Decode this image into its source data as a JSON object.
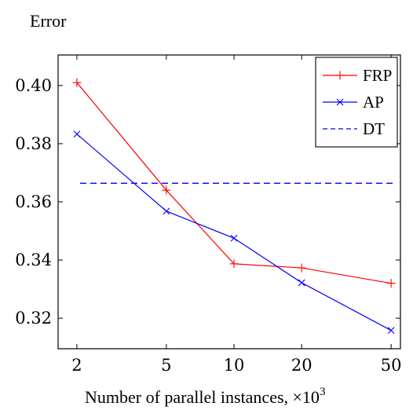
{
  "chart_data": {
    "type": "line",
    "ylabel": "Error",
    "xlabel": "Number of parallel instances, ×10",
    "xlabel_exponent": "3",
    "x_scale": "log",
    "categories": [
      "2",
      "5",
      "10",
      "20",
      "50"
    ],
    "x": [
      2,
      5,
      10,
      20,
      50
    ],
    "y_ticks": [
      "0.40",
      "0.38",
      "0.36",
      "0.34",
      "0.32"
    ],
    "y_tick_values": [
      0.4,
      0.38,
      0.36,
      0.34,
      0.32
    ],
    "ylim": [
      0.3095,
      0.4105
    ],
    "xlim": [
      1.65,
      55
    ],
    "grid": false,
    "legend_position": "top-right",
    "series": [
      {
        "name": "FRP",
        "color": "#ff0000",
        "marker": "plus",
        "style": "solid",
        "values": [
          0.401,
          0.364,
          0.3387,
          0.3373,
          0.332
        ]
      },
      {
        "name": "AP",
        "color": "#0000ff",
        "marker": "x",
        "style": "solid",
        "values": [
          0.3833,
          0.3568,
          0.3475,
          0.3322,
          0.3158
        ]
      },
      {
        "name": "DT",
        "color": "#0000ff",
        "marker": "none",
        "style": "dashed",
        "values": [
          0.3664,
          0.3664,
          0.3664,
          0.3664,
          0.3664
        ]
      }
    ]
  }
}
